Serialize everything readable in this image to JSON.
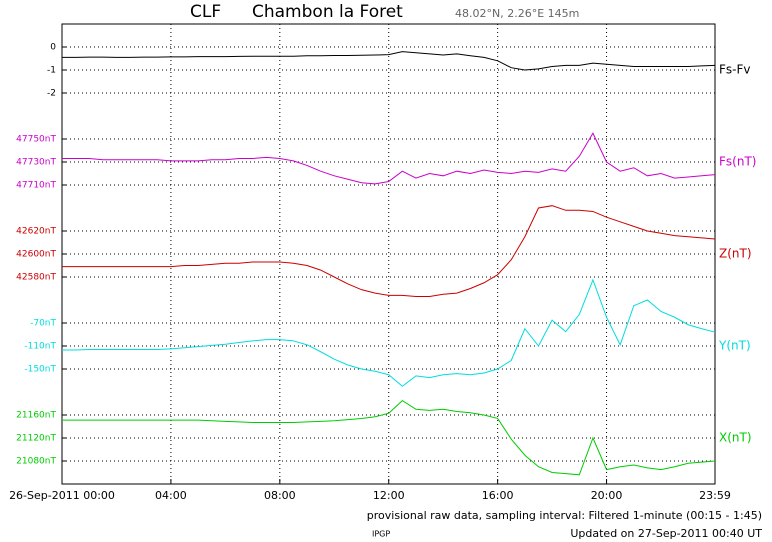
{
  "chart_data": {
    "type": "line",
    "title": "CLF",
    "subtitle": "Chambon la Foret",
    "location": "48.02°N, 2.26°E  145m",
    "footer": "provisional raw data, sampling interval: Filtered 1-minute (00:15 - 1:45)",
    "source": "IPGP",
    "updated": "Updated on 27-Sep-2011 00:40 UT",
    "grid": true,
    "x": [
      0,
      0.5,
      1,
      1.5,
      2,
      2.5,
      3,
      3.5,
      4,
      4.5,
      5,
      5.5,
      6,
      6.5,
      7,
      7.5,
      8,
      8.5,
      9,
      9.5,
      10,
      10.5,
      11,
      11.5,
      12,
      12.5,
      13,
      13.5,
      14,
      14.5,
      15,
      15.5,
      16,
      16.5,
      17,
      17.5,
      18,
      18.5,
      19,
      19.5,
      20,
      20.5,
      21,
      21.5,
      22,
      22.5,
      23,
      23.5,
      23.983
    ],
    "xlim": [
      0,
      23.983
    ],
    "xticks": [
      {
        "value": 0,
        "label": "26-Sep-2011 00:00"
      },
      {
        "value": 4,
        "label": "04:00"
      },
      {
        "value": 8,
        "label": "08:00"
      },
      {
        "value": 12,
        "label": "12:00"
      },
      {
        "value": 16,
        "label": "16:00"
      },
      {
        "value": 20,
        "label": "20:00"
      },
      {
        "value": 23.983,
        "label": "23:59"
      }
    ],
    "series": [
      {
        "name": "Fs-Fv",
        "color": "#000000",
        "ylim": [
          -3,
          1
        ],
        "yticks": [
          0,
          -1,
          -2
        ],
        "values": [
          -0.45,
          -0.45,
          -0.44,
          -0.44,
          -0.45,
          -0.45,
          -0.44,
          -0.44,
          -0.43,
          -0.43,
          -0.42,
          -0.42,
          -0.42,
          -0.41,
          -0.4,
          -0.4,
          -0.4,
          -0.4,
          -0.38,
          -0.38,
          -0.37,
          -0.37,
          -0.36,
          -0.35,
          -0.33,
          -0.2,
          -0.25,
          -0.3,
          -0.35,
          -0.3,
          -0.38,
          -0.45,
          -0.6,
          -0.9,
          -1.0,
          -0.95,
          -0.85,
          -0.8,
          -0.8,
          -0.7,
          -0.75,
          -0.8,
          -0.85,
          -0.85,
          -0.85,
          -0.85,
          -0.85,
          -0.82,
          -0.8
        ]
      },
      {
        "name": "Fs(nT)",
        "color": "#cc00cc",
        "ylim": [
          47690,
          47770
        ],
        "yticks": [
          {
            "value": 47750,
            "label": "47750nT"
          },
          {
            "value": 47730,
            "label": "47730nT"
          },
          {
            "value": 47710,
            "label": "47710nT"
          }
        ],
        "values": [
          47733,
          47733,
          47733,
          47732,
          47732,
          47732,
          47732,
          47732,
          47731,
          47731,
          47731,
          47732,
          47732,
          47733,
          47733,
          47734,
          47733,
          47731,
          47727,
          47722,
          47718,
          47715,
          47712,
          47711,
          47713,
          47722,
          47716,
          47720,
          47718,
          47722,
          47720,
          47723,
          47721,
          47720,
          47722,
          47721,
          47724,
          47722,
          47735,
          47755,
          47730,
          47722,
          47725,
          47718,
          47720,
          47716,
          47717,
          47718,
          47719
        ]
      },
      {
        "name": "Z(nT)",
        "color": "#cc0000",
        "ylim": [
          42560,
          42640
        ],
        "yticks": [
          {
            "value": 42620,
            "label": "42620nT"
          },
          {
            "value": 42600,
            "label": "42600nT"
          },
          {
            "value": 42580,
            "label": "42580nT"
          }
        ],
        "values": [
          42589,
          42589,
          42589,
          42589,
          42589,
          42589,
          42589,
          42589,
          42589,
          42590,
          42590,
          42591,
          42592,
          42592,
          42593,
          42593,
          42593,
          42592,
          42590,
          42586,
          42580,
          42574,
          42569,
          42566,
          42564,
          42564,
          42563,
          42563,
          42565,
          42566,
          42570,
          42575,
          42582,
          42595,
          42615,
          42640,
          42642,
          42638,
          42638,
          42637,
          42632,
          42628,
          42624,
          42620,
          42618,
          42616,
          42615,
          42614,
          42613
        ]
      },
      {
        "name": "Y(nT)",
        "color": "#00dddd",
        "ylim": [
          -190,
          -30
        ],
        "yticks": [
          {
            "value": -70,
            "label": "-70nT"
          },
          {
            "value": -110,
            "label": "-110nT"
          },
          {
            "value": -150,
            "label": "-150nT"
          }
        ],
        "values": [
          -117,
          -117,
          -116,
          -116,
          -116,
          -116,
          -116,
          -116,
          -115,
          -113,
          -111,
          -109,
          -107,
          -104,
          -101,
          -99,
          -99,
          -101,
          -108,
          -120,
          -133,
          -143,
          -150,
          -154,
          -160,
          -180,
          -162,
          -165,
          -160,
          -158,
          -160,
          -157,
          -150,
          -135,
          -80,
          -110,
          -65,
          -85,
          -55,
          5,
          -60,
          -108,
          -40,
          -30,
          -50,
          -60,
          -73,
          -80,
          -86
        ]
      },
      {
        "name": "X(nT)",
        "color": "#00cc00",
        "ylim": [
          21040,
          21200
        ],
        "yticks": [
          {
            "value": 21160,
            "label": "21160nT"
          },
          {
            "value": 21120,
            "label": "21120nT"
          },
          {
            "value": 21080,
            "label": "21080nT"
          }
        ],
        "values": [
          21151,
          21151,
          21151,
          21151,
          21151,
          21151,
          21151,
          21151,
          21151,
          21151,
          21151,
          21150,
          21149,
          21148,
          21147,
          21147,
          21147,
          21147,
          21148,
          21149,
          21150,
          21152,
          21154,
          21157,
          21163,
          21185,
          21170,
          21168,
          21170,
          21166,
          21164,
          21160,
          21154,
          21118,
          21090,
          21070,
          21060,
          21058,
          21056,
          21120,
          21065,
          21070,
          21073,
          21068,
          21065,
          21070,
          21076,
          21078,
          21080
        ]
      }
    ]
  }
}
